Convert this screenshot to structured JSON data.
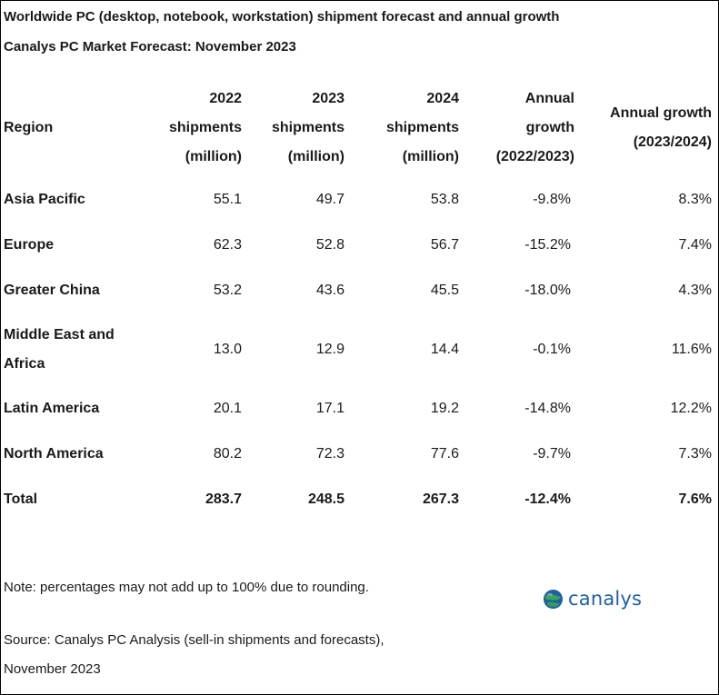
{
  "title": "Worldwide PC (desktop, notebook, workstation) shipment forecast and annual growth",
  "subtitle": "Canalys PC Market Forecast: November 2023",
  "columns": [
    {
      "lines": [
        "Region"
      ]
    },
    {
      "lines": [
        "2022",
        "shipments",
        "(million)"
      ]
    },
    {
      "lines": [
        "2023",
        "shipments",
        "(million)"
      ]
    },
    {
      "lines": [
        "2024",
        "shipments",
        "(million)"
      ]
    },
    {
      "lines": [
        "Annual",
        "growth",
        "(2022/2023)"
      ]
    },
    {
      "lines": [
        "Annual growth",
        "(2023/2024)"
      ]
    }
  ],
  "rows": [
    {
      "region": "Asia Pacific",
      "y2022": "55.1",
      "y2023": "49.7",
      "y2024": "53.8",
      "g2223": "-9.8%",
      "g2324": "8.3%"
    },
    {
      "region": "Europe",
      "y2022": "62.3",
      "y2023": "52.8",
      "y2024": "56.7",
      "g2223": "-15.2%",
      "g2324": "7.4%"
    },
    {
      "region": "Greater China",
      "y2022": "53.2",
      "y2023": "43.6",
      "y2024": "45.5",
      "g2223": "-18.0%",
      "g2324": "4.3%"
    },
    {
      "region": "Middle East and Africa",
      "y2022": "13.0",
      "y2023": "12.9",
      "y2024": "14.4",
      "g2223": "-0.1%",
      "g2324": "11.6%"
    },
    {
      "region": "Latin America",
      "y2022": "20.1",
      "y2023": "17.1",
      "y2024": "19.2",
      "g2223": "-14.8%",
      "g2324": "12.2%"
    },
    {
      "region": "North America",
      "y2022": "80.2",
      "y2023": "72.3",
      "y2024": "77.6",
      "g2223": "-9.7%",
      "g2324": "7.3%"
    }
  ],
  "total": {
    "region": "Total",
    "y2022": "283.7",
    "y2023": "248.5",
    "y2024": "267.3",
    "g2223": "-12.4%",
    "g2324": "7.6%"
  },
  "note": "Note: percentages may not add up to 100% due to rounding.",
  "source": "Source: Canalys PC Analysis (sell-in shipments and forecasts), November 2023",
  "logo": {
    "text": "canalys",
    "icon": "globe-icon",
    "color_blue": "#1f5fa6",
    "color_green": "#3aa655"
  },
  "chart_data": {
    "type": "table",
    "title": "Worldwide PC (desktop, notebook, workstation) shipment forecast and annual growth",
    "subtitle": "Canalys PC Market Forecast: November 2023",
    "columns": [
      "Region",
      "2022 shipments (million)",
      "2023 shipments (million)",
      "2024 shipments (million)",
      "Annual growth (2022/2023)",
      "Annual growth (2023/2024)"
    ],
    "categories": [
      "Asia Pacific",
      "Europe",
      "Greater China",
      "Middle East and Africa",
      "Latin America",
      "North America",
      "Total"
    ],
    "series": [
      {
        "name": "2022 shipments (million)",
        "values": [
          55.1,
          62.3,
          53.2,
          13.0,
          20.1,
          80.2,
          283.7
        ]
      },
      {
        "name": "2023 shipments (million)",
        "values": [
          49.7,
          52.8,
          43.6,
          12.9,
          17.1,
          72.3,
          248.5
        ]
      },
      {
        "name": "2024 shipments (million)",
        "values": [
          53.8,
          56.7,
          45.5,
          14.4,
          19.2,
          77.6,
          267.3
        ]
      },
      {
        "name": "Annual growth (2022/2023)",
        "values": [
          -9.8,
          -15.2,
          -18.0,
          -0.1,
          -14.8,
          -9.7,
          -12.4
        ]
      },
      {
        "name": "Annual growth (2023/2024)",
        "values": [
          8.3,
          7.4,
          4.3,
          11.6,
          12.2,
          7.3,
          7.6
        ]
      }
    ]
  }
}
